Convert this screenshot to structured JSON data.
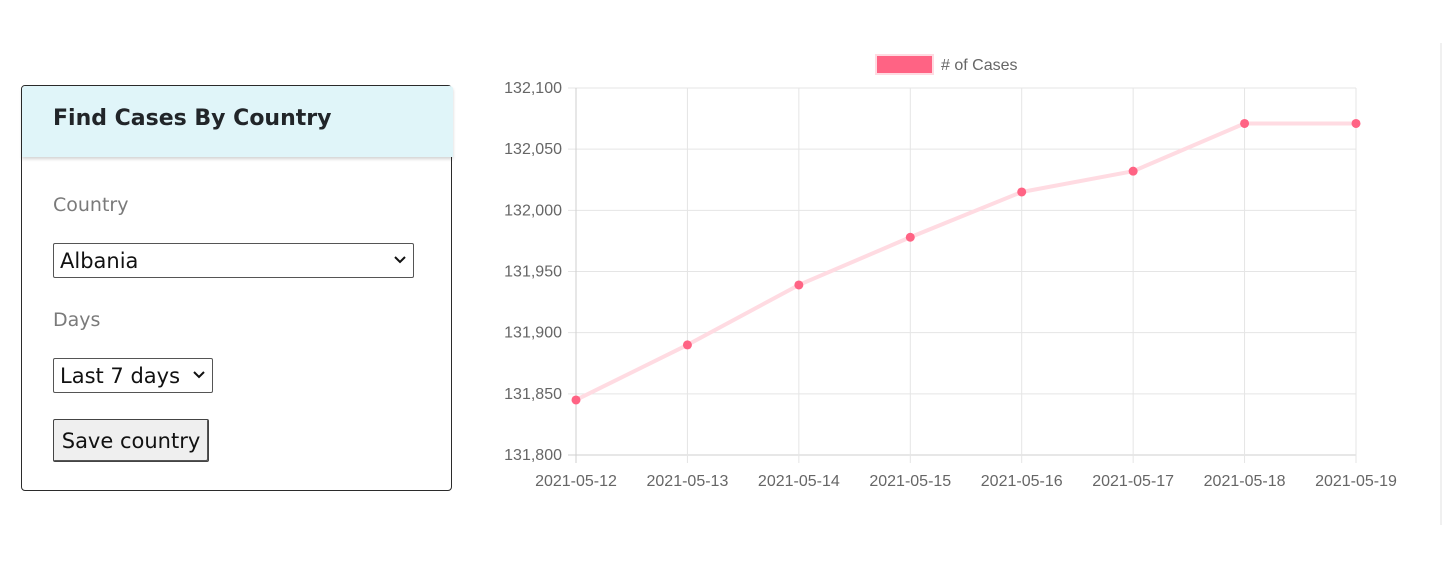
{
  "form": {
    "title": "Find Cases By Country",
    "country_label": "Country",
    "country_value": "Albania",
    "days_label": "Days",
    "days_value": "Last 7 days",
    "save_label": "Save country"
  },
  "chart_data": {
    "type": "line",
    "categories": [
      "2021-05-12",
      "2021-05-13",
      "2021-05-14",
      "2021-05-15",
      "2021-05-16",
      "2021-05-17",
      "2021-05-18",
      "2021-05-19"
    ],
    "series": [
      {
        "name": "# of Cases",
        "values": [
          131845,
          131890,
          131939,
          131978,
          132015,
          132032,
          132071,
          132071
        ]
      }
    ],
    "ylim": [
      131800,
      132100
    ],
    "yticks": [
      "131,800",
      "131,850",
      "131,900",
      "131,950",
      "132,000",
      "132,050",
      "132,100"
    ],
    "grid": true,
    "legend": "top-center",
    "line_color": "#ffdbe2",
    "point_color": "#ff6384"
  }
}
